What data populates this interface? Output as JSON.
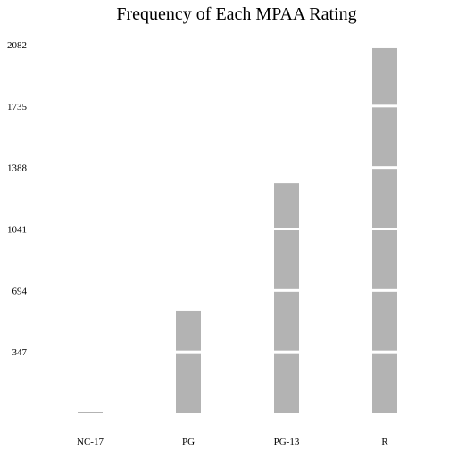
{
  "chart_data": {
    "type": "bar",
    "title": "Frequency of Each MPAA Rating",
    "xlabel": "",
    "ylabel": "",
    "categories": [
      "NC-17",
      "PG",
      "PG-13",
      "R"
    ],
    "values": [
      5,
      580,
      1300,
      2062
    ],
    "y_ticks": [
      347,
      694,
      1041,
      1388,
      1735,
      2082
    ],
    "ylim": [
      0,
      2082
    ],
    "bar_color": "#b3b3b3",
    "separator_color": "#ffffff",
    "grid": false,
    "legend": "none"
  }
}
